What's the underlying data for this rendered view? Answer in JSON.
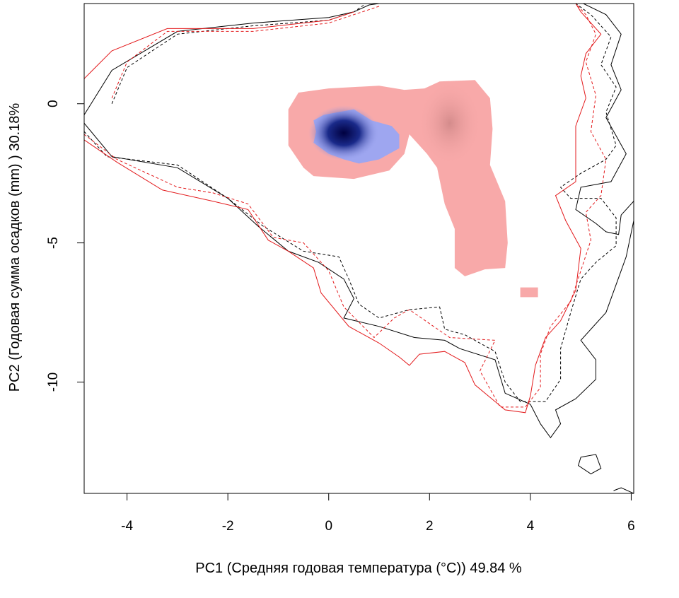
{
  "chart_data": {
    "type": "heatmap",
    "title": "",
    "xlabel": "PC1 (Средняя годовая температура (°C)) 49.84 %",
    "ylabel": "PC2 (Годовая сумма осадков  (mm) ) 30.18%",
    "xlim": [
      -4.85,
      6.05
    ],
    "ylim": [
      -14.0,
      3.6
    ],
    "x_ticks": [
      -4,
      -2,
      0,
      2,
      4,
      6
    ],
    "y_ticks": [
      0,
      -5,
      -10
    ],
    "grid": false,
    "legend": "none",
    "colors": {
      "red_line": "#e31a1c",
      "black_line": "#000000",
      "pink_fill": "#f8a9a9",
      "blue_light": "#9ea6f0",
      "blue_dark": "#000050"
    },
    "density_regions": [
      {
        "name": "pink",
        "fill": "#f8a9a9",
        "polygon": [
          [
            -0.8,
            -0.2
          ],
          [
            -0.6,
            0.4
          ],
          [
            0.0,
            0.55
          ],
          [
            1.0,
            0.65
          ],
          [
            1.5,
            0.5
          ],
          [
            1.9,
            0.55
          ],
          [
            2.2,
            0.8
          ],
          [
            2.9,
            0.85
          ],
          [
            3.2,
            0.2
          ],
          [
            3.25,
            -0.9
          ],
          [
            3.2,
            -2.2
          ],
          [
            3.5,
            -3.5
          ],
          [
            3.55,
            -5.0
          ],
          [
            3.5,
            -5.9
          ],
          [
            3.1,
            -5.95
          ],
          [
            2.7,
            -6.2
          ],
          [
            2.5,
            -5.9
          ],
          [
            2.5,
            -4.5
          ],
          [
            2.3,
            -3.6
          ],
          [
            2.15,
            -2.3
          ],
          [
            1.95,
            -1.8
          ],
          [
            1.6,
            -1.1
          ],
          [
            1.5,
            -1.8
          ],
          [
            1.2,
            -2.4
          ],
          [
            0.5,
            -2.7
          ],
          [
            -0.3,
            -2.6
          ],
          [
            -0.5,
            -2.3
          ],
          [
            -0.8,
            -1.5
          ]
        ],
        "hotspot": {
          "x": 2.4,
          "y": -0.7
        }
      },
      {
        "name": "pink-small",
        "fill": "#f8a9a9",
        "polygon": [
          [
            3.8,
            -6.6
          ],
          [
            4.15,
            -6.6
          ],
          [
            4.15,
            -6.95
          ],
          [
            3.8,
            -6.95
          ]
        ]
      },
      {
        "name": "blue-light",
        "fill": "#9ea6f0",
        "polygon": [
          [
            -0.3,
            -0.6
          ],
          [
            -0.1,
            -0.4
          ],
          [
            0.5,
            -0.2
          ],
          [
            0.85,
            -0.6
          ],
          [
            1.25,
            -0.8
          ],
          [
            1.4,
            -1.1
          ],
          [
            1.4,
            -1.6
          ],
          [
            1.0,
            -2.0
          ],
          [
            0.6,
            -2.15
          ],
          [
            0.3,
            -2.0
          ],
          [
            0.0,
            -1.8
          ],
          [
            -0.3,
            -1.4
          ],
          [
            -0.25,
            -1.0
          ]
        ]
      },
      {
        "name": "blue-dark",
        "fill": "#000050",
        "center": {
          "x": 0.3,
          "y": -1.05
        },
        "rx": 0.35,
        "ry": 0.55
      }
    ],
    "contours": [
      {
        "name": "black-solid",
        "color": "#000000",
        "dash": false,
        "points": [
          [
            -4.85,
            -0.4
          ],
          [
            -4.3,
            1.2
          ],
          [
            -3.0,
            2.6
          ],
          [
            -1.5,
            2.9
          ],
          [
            0.0,
            3.1
          ],
          [
            0.5,
            3.3
          ],
          [
            0.8,
            3.55
          ],
          [
            1.0,
            3.6
          ]
        ]
      },
      {
        "name": "black-solid-b",
        "color": "#000000",
        "dash": false,
        "points": [
          [
            -4.85,
            -0.7
          ],
          [
            -4.3,
            -1.9
          ],
          [
            -3.0,
            -2.3
          ],
          [
            -2.0,
            -3.4
          ],
          [
            -1.4,
            -4.4
          ],
          [
            -0.8,
            -5.3
          ],
          [
            -0.2,
            -5.7
          ],
          [
            0.3,
            -6.3
          ],
          [
            0.5,
            -7.0
          ],
          [
            0.3,
            -7.7
          ],
          [
            1.0,
            -8.0
          ],
          [
            1.7,
            -8.4
          ],
          [
            2.3,
            -8.5
          ],
          [
            2.6,
            -8.8
          ],
          [
            3.3,
            -9.2
          ],
          [
            3.5,
            -10.4
          ],
          [
            4.0,
            -10.8
          ],
          [
            4.2,
            -11.5
          ],
          [
            4.4,
            -12.0
          ],
          [
            4.6,
            -11.5
          ],
          [
            4.5,
            -11.0
          ],
          [
            4.9,
            -10.6
          ],
          [
            5.3,
            -9.9
          ],
          [
            5.3,
            -9.2
          ],
          [
            5.0,
            -8.5
          ],
          [
            5.5,
            -7.5
          ],
          [
            5.9,
            -5.5
          ],
          [
            6.05,
            -4.2
          ]
        ]
      },
      {
        "name": "black-solid-top",
        "color": "#000000",
        "dash": false,
        "points": [
          [
            5.05,
            3.6
          ],
          [
            5.5,
            3.2
          ],
          [
            5.8,
            2.5
          ],
          [
            5.6,
            1.4
          ],
          [
            5.8,
            0.5
          ],
          [
            5.5,
            -0.5
          ],
          [
            5.9,
            -1.8
          ],
          [
            5.6,
            -2.8
          ],
          [
            5.0,
            -3.0
          ],
          [
            4.9,
            -3.8
          ],
          [
            5.3,
            -4.3
          ],
          [
            5.5,
            -4.6
          ],
          [
            5.75,
            -4.7
          ],
          [
            5.8,
            -4.0
          ],
          [
            6.05,
            -3.5
          ]
        ]
      },
      {
        "name": "black-dash",
        "color": "#000000",
        "dash": true,
        "points": [
          [
            -4.85,
            -1.0
          ],
          [
            -4.4,
            -1.9
          ],
          [
            -3.0,
            -2.2
          ],
          [
            -2.0,
            -3.4
          ],
          [
            -1.3,
            -4.4
          ],
          [
            -0.5,
            -5.3
          ],
          [
            0.2,
            -5.5
          ],
          [
            0.4,
            -6.3
          ],
          [
            0.6,
            -7.2
          ],
          [
            1.0,
            -7.7
          ],
          [
            1.6,
            -7.4
          ],
          [
            2.2,
            -7.3
          ],
          [
            2.3,
            -8.1
          ],
          [
            2.7,
            -8.3
          ],
          [
            3.3,
            -8.9
          ],
          [
            3.5,
            -10.0
          ],
          [
            3.8,
            -10.7
          ],
          [
            4.3,
            -10.7
          ],
          [
            4.6,
            -9.9
          ],
          [
            4.6,
            -8.8
          ],
          [
            4.8,
            -7.5
          ],
          [
            5.0,
            -6.3
          ],
          [
            5.3,
            -5.7
          ],
          [
            5.7,
            -5.1
          ],
          [
            5.7,
            -4.1
          ],
          [
            5.4,
            -3.4
          ],
          [
            4.8,
            -3.4
          ],
          [
            4.6,
            -3.0
          ],
          [
            5.0,
            -2.5
          ],
          [
            5.5,
            -2.0
          ],
          [
            5.7,
            -1.5
          ],
          [
            5.5,
            -0.3
          ],
          [
            5.7,
            0.6
          ],
          [
            5.4,
            1.4
          ],
          [
            5.6,
            2.4
          ],
          [
            5.2,
            3.2
          ],
          [
            4.9,
            3.6
          ]
        ]
      },
      {
        "name": "black-dash-top",
        "color": "#000000",
        "dash": true,
        "points": [
          [
            -4.3,
            0.0
          ],
          [
            -4.0,
            1.3
          ],
          [
            -3.0,
            2.5
          ],
          [
            -1.5,
            2.8
          ],
          [
            0.0,
            3.0
          ],
          [
            0.5,
            3.3
          ],
          [
            0.7,
            3.55
          ]
        ]
      },
      {
        "name": "red-solid",
        "color": "#e31a1c",
        "dash": false,
        "points": [
          [
            -4.85,
            0.9
          ],
          [
            -4.3,
            1.9
          ],
          [
            -3.2,
            2.7
          ],
          [
            -1.5,
            2.7
          ],
          [
            0.0,
            3.0
          ],
          [
            0.5,
            3.3
          ]
        ]
      },
      {
        "name": "red-solid-b",
        "color": "#e31a1c",
        "dash": false,
        "points": [
          [
            -4.85,
            -1.3
          ],
          [
            -4.2,
            -2.1
          ],
          [
            -3.3,
            -3.1
          ],
          [
            -2.3,
            -3.5
          ],
          [
            -1.6,
            -3.8
          ],
          [
            -1.2,
            -4.9
          ],
          [
            -0.8,
            -5.3
          ],
          [
            -0.3,
            -5.9
          ],
          [
            -0.15,
            -6.8
          ],
          [
            0.4,
            -8.0
          ],
          [
            1.0,
            -8.6
          ],
          [
            1.4,
            -9.1
          ],
          [
            1.6,
            -9.4
          ],
          [
            1.8,
            -9.0
          ],
          [
            2.3,
            -8.9
          ],
          [
            2.7,
            -9.3
          ],
          [
            2.9,
            -10.1
          ],
          [
            3.3,
            -10.7
          ],
          [
            3.5,
            -11.0
          ],
          [
            3.9,
            -11.1
          ],
          [
            4.0,
            -10.5
          ],
          [
            4.1,
            -9.4
          ],
          [
            4.3,
            -8.4
          ],
          [
            4.6,
            -7.8
          ],
          [
            4.9,
            -6.7
          ],
          [
            5.0,
            -5.2
          ],
          [
            4.7,
            -4.2
          ],
          [
            4.5,
            -3.3
          ],
          [
            4.9,
            -2.8
          ],
          [
            4.9,
            -0.8
          ],
          [
            5.1,
            0.2
          ],
          [
            5.0,
            1.0
          ],
          [
            5.1,
            1.8
          ],
          [
            5.4,
            2.5
          ],
          [
            5.0,
            3.3
          ],
          [
            4.9,
            3.6
          ]
        ]
      },
      {
        "name": "red-dash",
        "color": "#e31a1c",
        "dash": true,
        "points": [
          [
            -4.85,
            -1.1
          ],
          [
            -4.2,
            -2.0
          ],
          [
            -3.0,
            -3.0
          ],
          [
            -2.3,
            -3.2
          ],
          [
            -1.6,
            -3.6
          ],
          [
            -1.1,
            -4.8
          ],
          [
            -0.5,
            -5.0
          ],
          [
            0.0,
            -6.0
          ],
          [
            0.3,
            -7.3
          ],
          [
            0.9,
            -8.4
          ],
          [
            1.3,
            -7.7
          ],
          [
            1.6,
            -7.4
          ],
          [
            2.0,
            -7.9
          ],
          [
            2.4,
            -8.4
          ],
          [
            3.3,
            -8.5
          ],
          [
            3.0,
            -9.6
          ],
          [
            3.4,
            -10.9
          ],
          [
            3.9,
            -10.9
          ],
          [
            4.2,
            -10.2
          ],
          [
            4.2,
            -9.0
          ],
          [
            4.4,
            -8.0
          ],
          [
            4.8,
            -7.1
          ],
          [
            5.0,
            -6.0
          ],
          [
            5.2,
            -4.9
          ],
          [
            5.1,
            -3.9
          ],
          [
            5.4,
            -3.3
          ],
          [
            5.5,
            -2.0
          ],
          [
            5.2,
            -1.0
          ],
          [
            5.3,
            0.3
          ],
          [
            5.1,
            1.5
          ],
          [
            5.3,
            2.5
          ],
          [
            5.1,
            3.2
          ],
          [
            4.9,
            3.6
          ]
        ]
      },
      {
        "name": "red-dash-top",
        "color": "#e31a1c",
        "dash": true,
        "points": [
          [
            -4.3,
            0.2
          ],
          [
            -4.0,
            1.5
          ],
          [
            -3.2,
            2.6
          ],
          [
            -2.3,
            2.6
          ],
          [
            -1.5,
            2.6
          ],
          [
            0.0,
            2.9
          ],
          [
            0.5,
            3.2
          ],
          [
            1.0,
            3.5
          ]
        ]
      },
      {
        "name": "black-island-a",
        "color": "#000000",
        "dash": false,
        "points": [
          [
            5.0,
            -12.7
          ],
          [
            5.3,
            -12.6
          ],
          [
            5.4,
            -13.1
          ],
          [
            5.2,
            -13.3
          ],
          [
            4.95,
            -13.0
          ],
          [
            5.0,
            -12.7
          ]
        ]
      },
      {
        "name": "black-island-b",
        "color": "#000000",
        "dash": false,
        "points": [
          [
            5.65,
            -13.9
          ],
          [
            5.8,
            -13.8
          ],
          [
            6.05,
            -14.0
          ]
        ]
      }
    ]
  }
}
